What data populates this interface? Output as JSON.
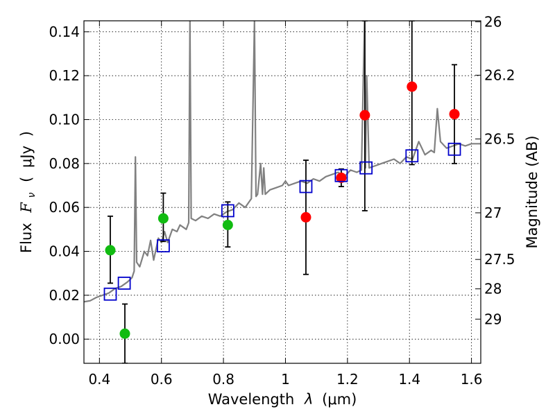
{
  "chart_data": {
    "type": "scatter",
    "xlabel": "Wavelength",
    "xlabel_symbol": "λ",
    "xlabel_unit": "(μm)",
    "ylabel": "Flux",
    "ylabel_symbol": "F",
    "ylabel_subscript": "ν",
    "ylabel_unit_open": "(",
    "ylabel_unit": "μJy",
    "ylabel_unit_close": ")",
    "y2label": "Magnitude (AB)",
    "xlim": [
      0.35,
      1.63
    ],
    "ylim": [
      -0.011,
      0.145
    ],
    "grid": true,
    "x_ticks": [
      0.4,
      0.6,
      0.8,
      1.0,
      1.2,
      1.4,
      1.6
    ],
    "x_tick_labels": [
      "0.4",
      "0.6",
      "0.8",
      "1",
      "1.2",
      "1.4",
      "1.6"
    ],
    "y_ticks": [
      0.0,
      0.02,
      0.04,
      0.06,
      0.08,
      0.1,
      0.12,
      0.14
    ],
    "y_tick_labels": [
      "0.00",
      "0.02",
      "0.04",
      "0.06",
      "0.08",
      "0.10",
      "0.12",
      "0.14"
    ],
    "magnitude_ticks": [
      {
        "label": "26",
        "mag": 26
      },
      {
        "label": "26.2",
        "mag": 26.2
      },
      {
        "label": "26.5",
        "mag": 26.5
      },
      {
        "label": "27",
        "mag": 27
      },
      {
        "label": "27.5",
        "mag": 27.5
      },
      {
        "label": "28",
        "mag": 28
      },
      {
        "label": "29",
        "mag": 29
      }
    ],
    "colors": {
      "green": "#11bb11",
      "red": "#ff0000",
      "model_squares": "#0000cc",
      "spectrum": "#808080",
      "errorbar": "#000000"
    },
    "series": [
      {
        "name": "green photometry",
        "color": "#11bb11",
        "points": [
          {
            "x": 0.435,
            "y": 0.0405,
            "ylow": 0.0255,
            "yhigh": 0.056
          },
          {
            "x": 0.482,
            "y": 0.0025,
            "ylow": -0.011,
            "yhigh": 0.016
          },
          {
            "x": 0.606,
            "y": 0.055,
            "ylow": 0.0445,
            "yhigh": 0.0665
          },
          {
            "x": 0.814,
            "y": 0.052,
            "ylow": 0.042,
            "yhigh": 0.0625
          }
        ]
      },
      {
        "name": "red photometry",
        "color": "#ff0000",
        "points": [
          {
            "x": 1.066,
            "y": 0.0555,
            "ylow": 0.0295,
            "yhigh": 0.0815
          },
          {
            "x": 1.18,
            "y": 0.0735,
            "ylow": 0.0695,
            "yhigh": 0.0775
          },
          {
            "x": 1.256,
            "y": 0.102,
            "ylow": 0.0585,
            "yhigh": 0.145
          },
          {
            "x": 1.408,
            "y": 0.115,
            "ylow": 0.0795,
            "yhigh": 0.145
          },
          {
            "x": 1.545,
            "y": 0.1025,
            "ylow": 0.08,
            "yhigh": 0.125
          }
        ]
      },
      {
        "name": "model synthetic photometry",
        "color": "#0000cc",
        "marker": "open-square",
        "points": [
          {
            "x": 0.435,
            "y": 0.0205
          },
          {
            "x": 0.48,
            "y": 0.0255
          },
          {
            "x": 0.606,
            "y": 0.0425
          },
          {
            "x": 0.814,
            "y": 0.0585
          },
          {
            "x": 1.066,
            "y": 0.0695
          },
          {
            "x": 1.18,
            "y": 0.0745
          },
          {
            "x": 1.26,
            "y": 0.078
          },
          {
            "x": 1.408,
            "y": 0.0835
          },
          {
            "x": 1.545,
            "y": 0.0865
          }
        ]
      }
    ],
    "spectrum": {
      "name": "model spectrum",
      "color": "#808080",
      "x": [
        0.35,
        0.37,
        0.39,
        0.41,
        0.43,
        0.45,
        0.47,
        0.49,
        0.505,
        0.512,
        0.516,
        0.52,
        0.53,
        0.545,
        0.555,
        0.565,
        0.575,
        0.59,
        0.6,
        0.61,
        0.62,
        0.635,
        0.65,
        0.66,
        0.67,
        0.68,
        0.688,
        0.692,
        0.696,
        0.71,
        0.73,
        0.75,
        0.77,
        0.79,
        0.81,
        0.83,
        0.85,
        0.87,
        0.89,
        0.9,
        0.905,
        0.91,
        0.92,
        0.926,
        0.93,
        0.935,
        0.95,
        0.97,
        0.99,
        1.0,
        1.01,
        1.03,
        1.05,
        1.07,
        1.09,
        1.11,
        1.13,
        1.15,
        1.17,
        1.19,
        1.21,
        1.23,
        1.245,
        1.255,
        1.258,
        1.262,
        1.27,
        1.29,
        1.31,
        1.33,
        1.35,
        1.37,
        1.39,
        1.41,
        1.43,
        1.45,
        1.47,
        1.48,
        1.49,
        1.5,
        1.52,
        1.54,
        1.56,
        1.58,
        1.6,
        1.63
      ],
      "y": [
        0.017,
        0.0175,
        0.019,
        0.02,
        0.021,
        0.023,
        0.024,
        0.026,
        0.028,
        0.031,
        0.083,
        0.035,
        0.033,
        0.04,
        0.038,
        0.045,
        0.036,
        0.046,
        0.044,
        0.049,
        0.044,
        0.05,
        0.049,
        0.052,
        0.051,
        0.05,
        0.053,
        0.145,
        0.055,
        0.054,
        0.056,
        0.055,
        0.057,
        0.056,
        0.058,
        0.059,
        0.062,
        0.06,
        0.064,
        0.145,
        0.065,
        0.066,
        0.08,
        0.066,
        0.078,
        0.066,
        0.068,
        0.069,
        0.07,
        0.072,
        0.07,
        0.071,
        0.072,
        0.071,
        0.073,
        0.072,
        0.074,
        0.075,
        0.076,
        0.074,
        0.077,
        0.076,
        0.077,
        0.145,
        0.078,
        0.12,
        0.078,
        0.079,
        0.08,
        0.081,
        0.082,
        0.08,
        0.083,
        0.082,
        0.09,
        0.084,
        0.086,
        0.085,
        0.105,
        0.09,
        0.087,
        0.088,
        0.089,
        0.088,
        0.089,
        0.089
      ]
    }
  }
}
